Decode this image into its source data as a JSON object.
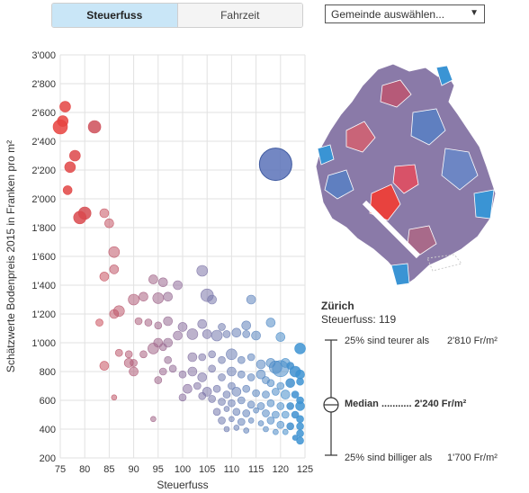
{
  "toggle": {
    "active_label": "Steuerfuss",
    "inactive_label": "Fahrzeit"
  },
  "select": {
    "label": "Gemeinde auswählen...",
    "arrow": "▼"
  },
  "selected": {
    "name": "Zürich",
    "tax_label": "Steuerfuss: 119"
  },
  "stats": {
    "upper_text": "25% sind teurer als",
    "upper_value": "2'810 Fr/m²",
    "median_text": "Median",
    "median_dots": "...........",
    "median_value": "2'240 Fr/m²",
    "lower_text": "25% sind billiger als",
    "lower_value": "1'700 Fr/m²"
  },
  "chart_data": {
    "type": "scatter",
    "xlabel": "Steuerfuss",
    "ylabel": "Schätzwerte Bodenpreis 2015 in Franken pro m²",
    "xlim": [
      75,
      125
    ],
    "ylim": [
      200,
      3000
    ],
    "xticks": [
      "75",
      "80",
      "85",
      "90",
      "95",
      "100",
      "105",
      "110",
      "115",
      "120",
      "125"
    ],
    "yticks": [
      "200",
      "400",
      "600",
      "800",
      "1'000",
      "1'200",
      "1'400",
      "1'600",
      "1'800",
      "2'000",
      "2'200",
      "2'400",
      "2'600",
      "2'800",
      "3'000"
    ],
    "color_low": "#e8423e",
    "color_mid": "#8b6f9e",
    "color_high": "#3a94d4",
    "color_zurich": "#5a72b8",
    "points": [
      [
        76,
        2640,
        6
      ],
      [
        75,
        2500,
        8
      ],
      [
        75.5,
        2540,
        6
      ],
      [
        82,
        2500,
        7
      ],
      [
        78,
        2300,
        6
      ],
      [
        77,
        2220,
        6
      ],
      [
        76.5,
        2060,
        5
      ],
      [
        80,
        1900,
        7
      ],
      [
        79,
        1870,
        7
      ],
      [
        84,
        1900,
        5
      ],
      [
        85,
        1830,
        5
      ],
      [
        86,
        1630,
        6
      ],
      [
        86,
        1510,
        5
      ],
      [
        84,
        1460,
        5
      ],
      [
        94,
        1440,
        5
      ],
      [
        96,
        1420,
        5
      ],
      [
        99,
        1400,
        5
      ],
      [
        104,
        1500,
        6
      ],
      [
        92,
        1320,
        5
      ],
      [
        95,
        1310,
        6
      ],
      [
        97,
        1320,
        5
      ],
      [
        90,
        1300,
        6
      ],
      [
        105,
        1330,
        7
      ],
      [
        106,
        1300,
        5
      ],
      [
        114,
        1300,
        5
      ],
      [
        87,
        1220,
        6
      ],
      [
        86,
        1200,
        5
      ],
      [
        83,
        1140,
        4
      ],
      [
        91,
        1150,
        4
      ],
      [
        93,
        1140,
        4
      ],
      [
        95,
        1120,
        4
      ],
      [
        97,
        1150,
        5
      ],
      [
        100,
        1110,
        5
      ],
      [
        104,
        1130,
        5
      ],
      [
        108,
        1110,
        4
      ],
      [
        113,
        1120,
        5
      ],
      [
        118,
        1140,
        5
      ],
      [
        87,
        930,
        4
      ],
      [
        89,
        920,
        4
      ],
      [
        92,
        920,
        4
      ],
      [
        94,
        960,
        6
      ],
      [
        95,
        1000,
        5
      ],
      [
        96,
        970,
        4
      ],
      [
        97,
        1000,
        5
      ],
      [
        99,
        1050,
        5
      ],
      [
        102,
        1060,
        6
      ],
      [
        105,
        1060,
        5
      ],
      [
        107,
        1050,
        6
      ],
      [
        109,
        1060,
        4
      ],
      [
        111,
        1070,
        5
      ],
      [
        113,
        1060,
        4
      ],
      [
        115,
        1050,
        5
      ],
      [
        120,
        1040,
        5
      ],
      [
        124,
        960,
        6
      ],
      [
        89,
        860,
        5
      ],
      [
        90,
        800,
        5
      ],
      [
        90,
        860,
        4
      ],
      [
        97,
        880,
        4
      ],
      [
        102,
        900,
        5
      ],
      [
        104,
        900,
        4
      ],
      [
        106,
        920,
        4
      ],
      [
        108,
        880,
        4
      ],
      [
        110,
        920,
        6
      ],
      [
        112,
        880,
        4
      ],
      [
        114,
        900,
        4
      ],
      [
        116,
        850,
        5
      ],
      [
        118,
        860,
        5
      ],
      [
        119,
        830,
        7
      ],
      [
        120,
        820,
        9
      ],
      [
        121,
        860,
        5
      ],
      [
        122,
        840,
        4
      ],
      [
        123,
        800,
        6
      ],
      [
        124,
        780,
        5
      ],
      [
        84,
        840,
        5
      ],
      [
        96,
        800,
        4
      ],
      [
        98,
        820,
        4
      ],
      [
        100,
        780,
        4
      ],
      [
        102,
        800,
        5
      ],
      [
        104,
        760,
        5
      ],
      [
        106,
        820,
        4
      ],
      [
        108,
        760,
        4
      ],
      [
        110,
        800,
        5
      ],
      [
        112,
        780,
        4
      ],
      [
        114,
        760,
        4
      ],
      [
        116,
        780,
        5
      ],
      [
        117,
        740,
        4
      ],
      [
        118,
        720,
        4
      ],
      [
        120,
        700,
        4
      ],
      [
        122,
        720,
        5
      ],
      [
        124,
        730,
        4
      ],
      [
        95,
        740,
        4
      ],
      [
        101,
        680,
        5
      ],
      [
        103,
        700,
        4
      ],
      [
        105,
        660,
        5
      ],
      [
        107,
        680,
        4
      ],
      [
        109,
        640,
        4
      ],
      [
        110,
        700,
        4
      ],
      [
        111,
        660,
        5
      ],
      [
        113,
        680,
        4
      ],
      [
        115,
        650,
        4
      ],
      [
        117,
        640,
        4
      ],
      [
        119,
        660,
        4
      ],
      [
        121,
        640,
        5
      ],
      [
        123,
        640,
        4
      ],
      [
        124,
        600,
        4
      ],
      [
        86,
        620,
        3
      ],
      [
        100,
        620,
        4
      ],
      [
        104,
        630,
        4
      ],
      [
        106,
        610,
        4
      ],
      [
        108,
        590,
        4
      ],
      [
        110,
        580,
        4
      ],
      [
        112,
        600,
        4
      ],
      [
        114,
        570,
        4
      ],
      [
        116,
        560,
        4
      ],
      [
        118,
        580,
        4
      ],
      [
        120,
        560,
        4
      ],
      [
        122,
        560,
        4
      ],
      [
        124,
        560,
        5
      ],
      [
        107,
        520,
        4
      ],
      [
        109,
        540,
        3
      ],
      [
        111,
        520,
        4
      ],
      [
        113,
        510,
        4
      ],
      [
        115,
        530,
        3
      ],
      [
        117,
        510,
        4
      ],
      [
        119,
        500,
        4
      ],
      [
        121,
        500,
        4
      ],
      [
        123,
        500,
        4
      ],
      [
        124,
        470,
        4
      ],
      [
        94,
        470,
        3
      ],
      [
        108,
        460,
        4
      ],
      [
        110,
        470,
        3
      ],
      [
        112,
        450,
        4
      ],
      [
        114,
        460,
        3
      ],
      [
        116,
        440,
        3
      ],
      [
        118,
        460,
        4
      ],
      [
        120,
        430,
        4
      ],
      [
        122,
        420,
        4
      ],
      [
        124,
        420,
        4
      ],
      [
        109,
        400,
        3
      ],
      [
        111,
        410,
        3
      ],
      [
        113,
        390,
        3
      ],
      [
        117,
        400,
        3
      ],
      [
        119,
        380,
        3
      ],
      [
        121,
        380,
        3
      ],
      [
        124,
        370,
        4
      ],
      [
        123,
        340,
        3
      ],
      [
        124,
        320,
        4
      ]
    ],
    "highlight": {
      "x": 119,
      "y": 2240,
      "r": 18,
      "label": "Zürich"
    }
  }
}
